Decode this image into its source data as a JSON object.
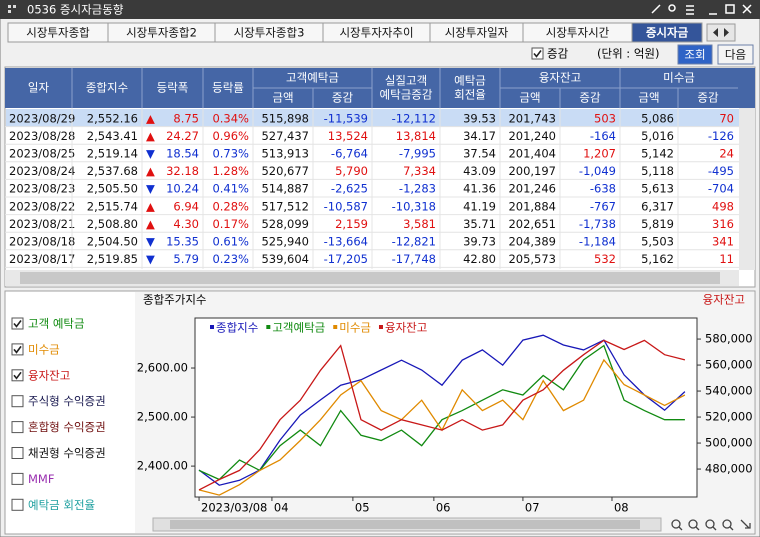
{
  "window": {
    "title": "0536 증시자금동향"
  },
  "tabs": [
    "시장투자종합",
    "시장투자종합2",
    "시장투자종합3",
    "시장투자자추이",
    "시장투자일자",
    "시장투자시간",
    "증시자금"
  ],
  "active_tab": 6,
  "toolbar": {
    "checkbox_label": "증감",
    "checked": true,
    "unit": "(단위 : 억원)",
    "buttons": [
      "조회",
      "다음"
    ]
  },
  "table": {
    "headers": [
      {
        "lines": [
          "일자"
        ]
      },
      {
        "lines": [
          "종합지수"
        ]
      },
      {
        "lines": [
          "등락폭"
        ]
      },
      {
        "lines": [
          "등락률"
        ]
      },
      {
        "lines": [
          "고객예탁금"
        ],
        "sub": [
          "금액",
          "증감"
        ]
      },
      {
        "lines": [
          "실질고객",
          "예탁금증감"
        ]
      },
      {
        "lines": [
          "예탁금",
          "회전율"
        ]
      },
      {
        "lines": [
          "융자잔고"
        ],
        "sub": [
          "금액",
          "증감"
        ]
      },
      {
        "lines": [
          "미수금"
        ],
        "sub": [
          "금액",
          "증감"
        ]
      }
    ],
    "rows": [
      [
        "2023/08/29",
        "2,552.16",
        "▲",
        "8.75",
        "0.34%",
        "515,898",
        "-11,539",
        "-12,112",
        "39.53",
        "201,743",
        "503",
        "5,086",
        "70"
      ],
      [
        "2023/08/28",
        "2,543.41",
        "▲",
        "24.27",
        "0.96%",
        "527,437",
        "13,524",
        "13,814",
        "34.17",
        "201,240",
        "-164",
        "5,016",
        "-126"
      ],
      [
        "2023/08/25",
        "2,519.14",
        "▼",
        "18.54",
        "0.73%",
        "513,913",
        "-6,764",
        "-7,995",
        "37.54",
        "201,404",
        "1,207",
        "5,142",
        "24"
      ],
      [
        "2023/08/24",
        "2,537.68",
        "▲",
        "32.18",
        "1.28%",
        "520,677",
        "5,790",
        "7,334",
        "43.09",
        "200,197",
        "-1,049",
        "5,118",
        "-495"
      ],
      [
        "2023/08/23",
        "2,505.50",
        "▼",
        "10.24",
        "0.41%",
        "514,887",
        "-2,625",
        "-1,283",
        "41.36",
        "201,246",
        "-638",
        "5,613",
        "-704"
      ],
      [
        "2023/08/22",
        "2,515.74",
        "▲",
        "6.94",
        "0.28%",
        "517,512",
        "-10,587",
        "-10,318",
        "41.19",
        "201,884",
        "-767",
        "6,317",
        "498"
      ],
      [
        "2023/08/21",
        "2,508.80",
        "▲",
        "4.30",
        "0.17%",
        "528,099",
        "2,159",
        "3,581",
        "35.71",
        "202,651",
        "-1,738",
        "5,819",
        "316"
      ],
      [
        "2023/08/18",
        "2,504.50",
        "▼",
        "15.35",
        "0.61%",
        "525,940",
        "-13,664",
        "-12,821",
        "39.73",
        "204,389",
        "-1,184",
        "5,503",
        "341"
      ],
      [
        "2023/08/17",
        "2,519.85",
        "▼",
        "5.79",
        "0.23%",
        "539,604",
        "-17,205",
        "-17,748",
        "42.80",
        "205,573",
        "532",
        "5,162",
        "11"
      ]
    ]
  },
  "options": [
    {
      "label": "고객 예탁금",
      "checked": true,
      "color": "#108a10"
    },
    {
      "label": "미수금",
      "checked": true,
      "color": "#e08a00"
    },
    {
      "label": "융자잔고",
      "checked": true,
      "color": "#c81818"
    },
    {
      "label": "주식형 수익증권",
      "checked": false,
      "color": "#1a1a50"
    },
    {
      "label": "혼합형 수익증권",
      "checked": false,
      "color": "#701010"
    },
    {
      "label": "채권형 수익증권",
      "checked": false,
      "color": "#101010"
    },
    {
      "label": "MMF",
      "checked": false,
      "color": "#9a30b0"
    },
    {
      "label": "예탁금 회전율",
      "checked": false,
      "color": "#20a0a0"
    }
  ],
  "chart_data": {
    "type": "line",
    "title": "종합주가지수",
    "y2_title": "융자잔고",
    "grid": false,
    "x": [
      0,
      5,
      10,
      15,
      20,
      25,
      30,
      35,
      40,
      45,
      50,
      55,
      60,
      65,
      70,
      75,
      80,
      85,
      90,
      95,
      100,
      105,
      110,
      115,
      120
    ],
    "xlim": [
      -1,
      123
    ],
    "xticks": [
      {
        "value": 0,
        "label": "2023/03/08"
      },
      {
        "value": 18,
        "label": "04"
      },
      {
        "value": 38,
        "label": "05"
      },
      {
        "value": 58,
        "label": "06"
      },
      {
        "value": 80,
        "label": "07"
      },
      {
        "value": 102,
        "label": "08"
      }
    ],
    "ylim": [
      2337,
      2702
    ],
    "yticks": [
      {
        "value": 2400,
        "label": "2,400.00"
      },
      {
        "value": 2500,
        "label": "2,500.00"
      },
      {
        "value": 2600,
        "label": "2,600.00"
      }
    ],
    "y2lim": [
      458500,
      596200
    ],
    "y2ticks": [
      {
        "value": 480000,
        "label": "480,000"
      },
      {
        "value": 500000,
        "label": "500,000"
      },
      {
        "value": 520000,
        "label": "520,000"
      },
      {
        "value": 540000,
        "label": "540,000"
      },
      {
        "value": 560000,
        "label": "560,000"
      },
      {
        "value": 580000,
        "label": "580,000"
      }
    ],
    "series": [
      {
        "name": "종합지수",
        "color": "#1818b8",
        "values": [
          2392,
          2361,
          2371,
          2392,
          2453,
          2504,
          2535,
          2565,
          2576,
          2596,
          2616,
          2596,
          2565,
          2616,
          2637,
          2606,
          2657,
          2667,
          2647,
          2637,
          2657,
          2586,
          2545,
          2514,
          2552
        ]
      },
      {
        "name": "고객예탁금",
        "color": "#118a11",
        "axis": "y2",
        "values": [
          479000,
          472000,
          487000,
          479000,
          498000,
          510000,
          498000,
          525000,
          506000,
          502000,
          510000,
          498000,
          518000,
          525000,
          533000,
          541000,
          537000,
          552000,
          541000,
          564000,
          575000,
          533000,
          525000,
          518000,
          518000
        ]
      },
      {
        "name": "미수금",
        "color": "#e08a00",
        "axis": "y2",
        "values": [
          464000,
          460000,
          468000,
          479000,
          487000,
          502000,
          518000,
          537000,
          548000,
          525000,
          518000,
          533000,
          510000,
          541000,
          525000,
          533000,
          518000,
          548000,
          525000,
          533000,
          564000,
          545000,
          537000,
          529000,
          537000
        ]
      },
      {
        "name": "융자잔고",
        "color": "#c81818",
        "axis": "y2",
        "values": [
          464000,
          472000,
          479000,
          495000,
          518000,
          533000,
          556000,
          575000,
          518000,
          510000,
          518000,
          514000,
          510000,
          518000,
          510000,
          514000,
          533000,
          541000,
          556000,
          568000,
          579000,
          572000,
          579000,
          568000,
          564000
        ]
      }
    ]
  }
}
